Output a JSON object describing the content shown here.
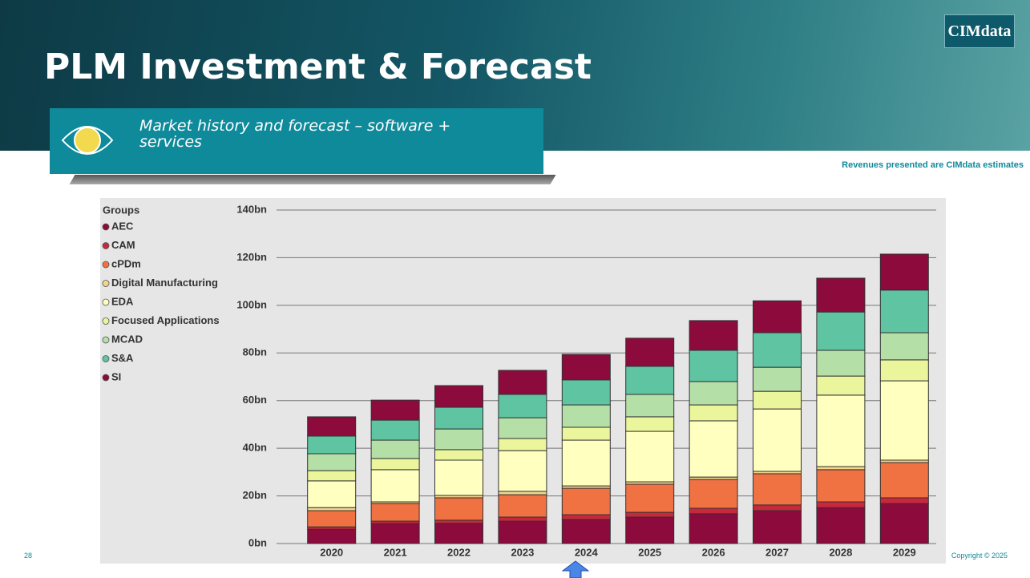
{
  "slide": {
    "title": "PLM Investment & Forecast",
    "logo": "CIMdata",
    "subtitle": "Market history and forecast – software + services",
    "note": "Revenues presented are CIMdata estimates",
    "page_number": "28",
    "copyright": "Copyright © 2025"
  },
  "chart_data": {
    "type": "stacked-bar",
    "legend_title": "Groups",
    "legend_position": "left",
    "grid": true,
    "categories": [
      "2020",
      "2021",
      "2022",
      "2023",
      "2024",
      "2025",
      "2026",
      "2027",
      "2028",
      "2029"
    ],
    "ylim": [
      0,
      140
    ],
    "yticks": [
      {
        "value": 0,
        "label": "0bn"
      },
      {
        "value": 20,
        "label": "20bn"
      },
      {
        "value": 40,
        "label": "40bn"
      },
      {
        "value": 60,
        "label": "60bn"
      },
      {
        "value": 80,
        "label": "80bn"
      },
      {
        "value": 100,
        "label": "100bn"
      },
      {
        "value": 120,
        "label": "120bn"
      },
      {
        "value": 140,
        "label": "140bn"
      }
    ],
    "series": [
      {
        "name": "AEC",
        "color": "#8c0a3c",
        "values": [
          6,
          8.4,
          8.5,
          9.4,
          10.1,
          11.1,
          12.5,
          13.8,
          15.1,
          16.8
        ]
      },
      {
        "name": "CAM",
        "color": "#c9283c",
        "values": [
          1,
          1,
          1.3,
          1.7,
          2,
          2,
          2.3,
          2.4,
          2.4,
          2.4
        ]
      },
      {
        "name": "cPDm",
        "color": "#f07142",
        "values": [
          6.8,
          7.4,
          9.4,
          9.4,
          11.1,
          11.8,
          12.1,
          13.1,
          13.5,
          14.8
        ]
      },
      {
        "name": "Digital Manufacturing",
        "color": "#f3d58c",
        "values": [
          1.3,
          0.7,
          1,
          1.4,
          1,
          1,
          1,
          1,
          1.3,
          1
        ]
      },
      {
        "name": "EDA",
        "color": "#ffffc0",
        "values": [
          11.2,
          13.5,
          14.8,
          17.1,
          19.2,
          21.2,
          23.6,
          26.2,
          30,
          33.3
        ]
      },
      {
        "name": "Focused Applications",
        "color": "#ebf59c",
        "values": [
          4.3,
          4.7,
          4.4,
          5.1,
          5.4,
          6.1,
          6.7,
          7.4,
          8,
          8.8
        ]
      },
      {
        "name": "MCAD",
        "color": "#b4dfa6",
        "values": [
          7.1,
          7.7,
          8.7,
          8.7,
          9.4,
          9.4,
          9.8,
          10.1,
          10.8,
          11.4
        ]
      },
      {
        "name": "S&A",
        "color": "#5ec4a2",
        "values": [
          7.4,
          8.4,
          9.1,
          9.8,
          10.5,
          11.8,
          13.1,
          14.5,
          16.1,
          17.9
        ]
      },
      {
        "name": "SI",
        "color": "#8c0a3c",
        "values": [
          8.1,
          8.4,
          9.1,
          10.1,
          10.7,
          11.8,
          12.5,
          13.4,
          14.2,
          15.1
        ]
      }
    ]
  }
}
